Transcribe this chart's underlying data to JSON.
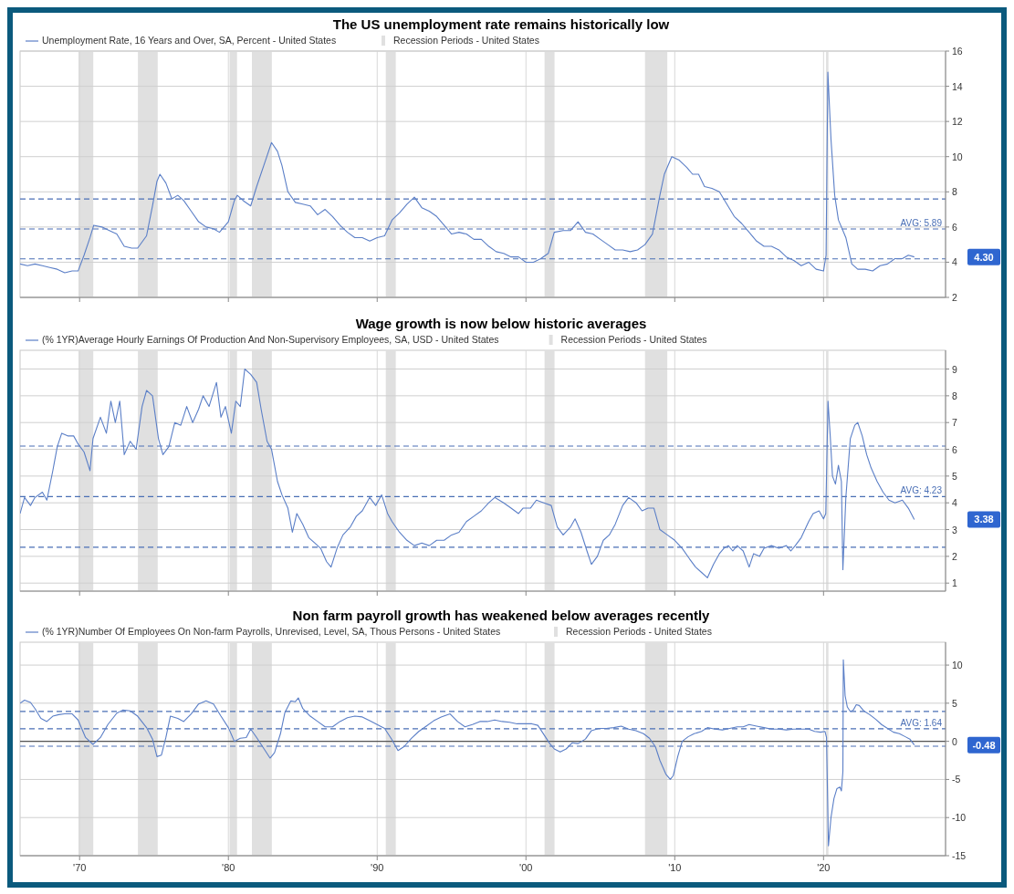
{
  "chart_data": [
    {
      "type": "line",
      "title": "The US unemployment rate remains historically low",
      "x": [
        1966.0,
        1966.5,
        1967,
        1967.5,
        1968,
        1968.5,
        1969,
        1969.5,
        1969.9,
        1970.3,
        1970.7,
        1970.95,
        1971.5,
        1972,
        1972.5,
        1973,
        1973.5,
        1973.9,
        1974.5,
        1974.9,
        1975.2,
        1975.4,
        1975.8,
        1976.2,
        1976.6,
        1977,
        1977.5,
        1978,
        1978.5,
        1979,
        1979.4,
        1980,
        1980.4,
        1980.6,
        1981,
        1981.5,
        1981.9,
        1982.5,
        1982.9,
        1983.3,
        1983.6,
        1984,
        1984.5,
        1985,
        1985.5,
        1986,
        1986.5,
        1987,
        1987.5,
        1988,
        1988.5,
        1989,
        1989.5,
        1990,
        1990.5,
        1991,
        1991.5,
        1992,
        1992.5,
        1993,
        1993.5,
        1994,
        1994.5,
        1995,
        1995.5,
        1996,
        1996.5,
        1997,
        1997.5,
        1998,
        1998.5,
        1999,
        1999.5,
        2000,
        2000.5,
        2001,
        2001.5,
        2001.9,
        2002.5,
        2003,
        2003.5,
        2004,
        2004.5,
        2005,
        2005.5,
        2006,
        2006.5,
        2007,
        2007.5,
        2008,
        2008.5,
        2009,
        2009.3,
        2009.8,
        2010.3,
        2010.8,
        2011.2,
        2011.6,
        2012,
        2012.5,
        2013,
        2013.5,
        2014,
        2014.5,
        2015,
        2015.5,
        2016,
        2016.5,
        2017,
        2017.5,
        2018,
        2018.5,
        2019,
        2019.5,
        2020.0,
        2020.17,
        2020.29,
        2020.5,
        2020.75,
        2021,
        2021.5,
        2021.9,
        2022.3,
        2022.8,
        2023.3,
        2023.8,
        2024.3,
        2024.8,
        2025.3,
        2025.7,
        2026.1
      ],
      "series": [
        {
          "name": "Unemployment Rate, 16 Years and Over, SA, Percent - United States",
          "color": "#5b7fc7",
          "values": [
            3.9,
            3.8,
            3.9,
            3.8,
            3.7,
            3.6,
            3.4,
            3.5,
            3.5,
            4.4,
            5.4,
            6.1,
            6.0,
            5.8,
            5.6,
            4.9,
            4.8,
            4.8,
            5.5,
            7.2,
            8.6,
            9.0,
            8.5,
            7.6,
            7.8,
            7.5,
            6.9,
            6.3,
            6.0,
            5.9,
            5.7,
            6.3,
            7.5,
            7.8,
            7.5,
            7.2,
            8.3,
            9.8,
            10.8,
            10.3,
            9.5,
            8.0,
            7.4,
            7.3,
            7.2,
            6.7,
            7.0,
            6.6,
            6.1,
            5.7,
            5.4,
            5.4,
            5.2,
            5.4,
            5.5,
            6.4,
            6.8,
            7.3,
            7.7,
            7.1,
            6.9,
            6.6,
            6.1,
            5.6,
            5.7,
            5.6,
            5.3,
            5.3,
            4.9,
            4.6,
            4.5,
            4.3,
            4.3,
            4.0,
            4.0,
            4.2,
            4.5,
            5.7,
            5.8,
            5.8,
            6.3,
            5.7,
            5.6,
            5.3,
            5.0,
            4.7,
            4.7,
            4.6,
            4.7,
            5.0,
            5.6,
            7.8,
            9.0,
            10.0,
            9.8,
            9.4,
            9.0,
            9.0,
            8.3,
            8.2,
            8.0,
            7.3,
            6.6,
            6.2,
            5.7,
            5.2,
            4.9,
            4.9,
            4.7,
            4.3,
            4.1,
            3.8,
            4.0,
            3.6,
            3.5,
            4.4,
            14.8,
            11.0,
            7.8,
            6.4,
            5.4,
            3.9,
            3.6,
            3.6,
            3.5,
            3.8,
            3.9,
            4.2,
            4.2,
            4.4,
            4.3
          ]
        }
      ],
      "xlim": [
        1966.0,
        2028.2
      ],
      "xticks": [
        {
          "value": 1970,
          "label": null
        },
        {
          "value": 1980,
          "label": null
        },
        {
          "value": 1990,
          "label": null
        },
        {
          "value": 2000,
          "label": null
        },
        {
          "value": 2010,
          "label": null
        },
        {
          "value": 2020,
          "label": null
        }
      ],
      "ylim": [
        2,
        16
      ],
      "yticks": [
        2,
        4,
        6,
        8,
        10,
        12,
        14,
        16
      ],
      "bands": [
        {
          "axis": "x",
          "from": 1969.92,
          "to": 1970.92,
          "label": "Recession Periods - United States",
          "color": "#e0e0e0"
        },
        {
          "axis": "x",
          "from": 1973.92,
          "to": 1975.25,
          "color": "#e0e0e0"
        },
        {
          "axis": "x",
          "from": 1980.08,
          "to": 1980.58,
          "color": "#e0e0e0"
        },
        {
          "axis": "x",
          "from": 1981.58,
          "to": 1982.92,
          "color": "#e0e0e0"
        },
        {
          "axis": "x",
          "from": 1990.58,
          "to": 1991.25,
          "color": "#e0e0e0"
        },
        {
          "axis": "x",
          "from": 2001.25,
          "to": 2001.92,
          "color": "#e0e0e0"
        },
        {
          "axis": "x",
          "from": 2008.0,
          "to": 2009.5,
          "color": "#e0e0e0"
        },
        {
          "axis": "x",
          "from": 2020.17,
          "to": 2020.33,
          "color": "#e0e0e0"
        }
      ],
      "ref_lines": [
        {
          "axis": "y",
          "value": 7.59,
          "color": "#4a6fb5",
          "line_style": "dashed"
        },
        {
          "axis": "y",
          "value": 5.89,
          "label": "AVG: 5.89",
          "color": "#4a6fb5",
          "line_style": "dashed"
        },
        {
          "axis": "y",
          "value": 4.19,
          "color": "#4a6fb5",
          "line_style": "dashed"
        }
      ],
      "annotations": [
        "4.30"
      ],
      "grid": true,
      "legend": "top left",
      "tick_labels": "y"
    },
    {
      "type": "line",
      "title": "Wage growth is now below historic averages",
      "x": [
        1966.0,
        1966.3,
        1966.7,
        1967,
        1967.5,
        1967.8,
        1968.2,
        1968.5,
        1968.8,
        1969.2,
        1969.6,
        1969.9,
        1970.3,
        1970.7,
        1970.9,
        1971.4,
        1971.8,
        1972.1,
        1972.4,
        1972.7,
        1973,
        1973.4,
        1973.8,
        1974.2,
        1974.5,
        1974.9,
        1975.3,
        1975.6,
        1976,
        1976.4,
        1976.8,
        1977.2,
        1977.6,
        1978,
        1978.3,
        1978.7,
        1979.2,
        1979.5,
        1979.8,
        1980.2,
        1980.5,
        1980.8,
        1981.1,
        1981.5,
        1981.9,
        1982.2,
        1982.6,
        1982.9,
        1983.3,
        1983.6,
        1984,
        1984.3,
        1984.6,
        1985,
        1985.4,
        1985.8,
        1986.2,
        1986.6,
        1986.9,
        1987.3,
        1987.7,
        1988.2,
        1988.6,
        1989,
        1989.5,
        1989.9,
        1990.3,
        1990.7,
        1991,
        1991.5,
        1992,
        1992.5,
        1993,
        1993.5,
        1994,
        1994.5,
        1995,
        1995.5,
        1996,
        1996.5,
        1997,
        1997.5,
        1997.9,
        1998.5,
        1999,
        1999.5,
        1999.8,
        2000.3,
        2000.7,
        2001.2,
        2001.7,
        2002.1,
        2002.5,
        2003,
        2003.3,
        2003.7,
        2004.1,
        2004.4,
        2004.8,
        2005.2,
        2005.6,
        2006,
        2006.5,
        2006.9,
        2007.4,
        2007.8,
        2008.2,
        2008.6,
        2009,
        2009.5,
        2010,
        2010.5,
        2011,
        2011.4,
        2011.8,
        2012.2,
        2012.6,
        2013,
        2013.3,
        2013.6,
        2013.9,
        2014.2,
        2014.6,
        2015.0,
        2015.3,
        2015.7,
        2016,
        2016.5,
        2017,
        2017.5,
        2017.8,
        2018.1,
        2018.5,
        2019,
        2019.3,
        2019.7,
        2020.0,
        2020.15,
        2020.3,
        2020.45,
        2020.6,
        2020.8,
        2021.0,
        2021.2,
        2021.3,
        2021.5,
        2021.8,
        2022.1,
        2022.3,
        2022.6,
        2022.9,
        2023.2,
        2023.6,
        2024,
        2024.4,
        2024.8,
        2025.3,
        2025.7,
        2026.1
      ],
      "series": [
        {
          "name": "(% 1YR)Average Hourly Earnings Of Production And Non-Supervisory Employees, SA, USD - United States",
          "color": "#5b7fc7",
          "values": [
            3.6,
            4.2,
            3.9,
            4.2,
            4.4,
            4.1,
            5.2,
            6.1,
            6.6,
            6.5,
            6.5,
            6.2,
            5.9,
            5.2,
            6.4,
            7.2,
            6.6,
            7.8,
            7.0,
            7.8,
            5.8,
            6.3,
            6.0,
            7.6,
            8.2,
            8.0,
            6.4,
            5.8,
            6.1,
            7.0,
            6.9,
            7.6,
            7.0,
            7.5,
            8.0,
            7.6,
            8.5,
            7.2,
            7.6,
            6.6,
            7.8,
            7.6,
            9.0,
            8.8,
            8.5,
            7.5,
            6.3,
            6.0,
            4.8,
            4.3,
            3.8,
            2.9,
            3.6,
            3.2,
            2.7,
            2.5,
            2.3,
            1.8,
            1.6,
            2.3,
            2.8,
            3.1,
            3.5,
            3.7,
            4.2,
            3.9,
            4.3,
            3.6,
            3.3,
            2.9,
            2.6,
            2.4,
            2.5,
            2.4,
            2.6,
            2.6,
            2.8,
            2.9,
            3.3,
            3.5,
            3.7,
            4.0,
            4.2,
            4.0,
            3.8,
            3.6,
            3.8,
            3.8,
            4.1,
            4.0,
            3.9,
            3.1,
            2.8,
            3.1,
            3.4,
            2.9,
            2.2,
            1.7,
            2.0,
            2.6,
            2.8,
            3.2,
            3.9,
            4.2,
            4.0,
            3.7,
            3.8,
            3.8,
            3.0,
            2.8,
            2.6,
            2.3,
            1.9,
            1.6,
            1.4,
            1.2,
            1.7,
            2.1,
            2.3,
            2.4,
            2.2,
            2.4,
            2.2,
            1.6,
            2.1,
            2.0,
            2.3,
            2.4,
            2.3,
            2.4,
            2.2,
            2.4,
            2.7,
            3.3,
            3.6,
            3.7,
            3.4,
            3.6,
            7.8,
            6.5,
            5.0,
            4.7,
            5.4,
            4.8,
            1.5,
            4.2,
            6.4,
            6.9,
            7.0,
            6.5,
            5.8,
            5.3,
            4.8,
            4.4,
            4.1,
            4.0,
            4.1,
            3.8,
            3.38
          ]
        }
      ],
      "xlim": [
        1966.0,
        2028.2
      ],
      "xticks": [
        {
          "value": 1970,
          "label": null
        },
        {
          "value": 1980,
          "label": null
        },
        {
          "value": 1990,
          "label": null
        },
        {
          "value": 2000,
          "label": null
        },
        {
          "value": 2010,
          "label": null
        },
        {
          "value": 2020,
          "label": null
        }
      ],
      "ylim": [
        0.7,
        9.7
      ],
      "yticks": [
        1,
        2,
        3,
        4,
        5,
        6,
        7,
        8,
        9
      ],
      "bands": [
        {
          "axis": "x",
          "from": 1969.92,
          "to": 1970.92,
          "label": "Recession Periods - United States",
          "color": "#e0e0e0"
        },
        {
          "axis": "x",
          "from": 1973.92,
          "to": 1975.25,
          "color": "#e0e0e0"
        },
        {
          "axis": "x",
          "from": 1980.08,
          "to": 1980.58,
          "color": "#e0e0e0"
        },
        {
          "axis": "x",
          "from": 1981.58,
          "to": 1982.92,
          "color": "#e0e0e0"
        },
        {
          "axis": "x",
          "from": 1990.58,
          "to": 1991.25,
          "color": "#e0e0e0"
        },
        {
          "axis": "x",
          "from": 2001.25,
          "to": 2001.92,
          "color": "#e0e0e0"
        },
        {
          "axis": "x",
          "from": 2008.0,
          "to": 2009.5,
          "color": "#e0e0e0"
        },
        {
          "axis": "x",
          "from": 2020.17,
          "to": 2020.33,
          "color": "#e0e0e0"
        }
      ],
      "ref_lines": [
        {
          "axis": "y",
          "value": 6.12,
          "color": "#4a6fb5",
          "line_style": "dashed"
        },
        {
          "axis": "y",
          "value": 4.23,
          "label": "AVG: 4.23",
          "color": "#4a6fb5",
          "line_style": "dashed"
        },
        {
          "axis": "y",
          "value": 2.34,
          "color": "#4a6fb5",
          "line_style": "dashed"
        }
      ],
      "annotations": [
        "3.38"
      ],
      "grid": true,
      "legend": "top left",
      "tick_labels": "y"
    },
    {
      "type": "line",
      "title": "Non farm payroll growth has weakened below averages recently",
      "x": [
        1966.0,
        1966.3,
        1966.7,
        1967.0,
        1967.4,
        1967.8,
        1968.2,
        1968.6,
        1969.0,
        1969.5,
        1969.9,
        1970.4,
        1970.9,
        1971.4,
        1971.9,
        1972.5,
        1972.9,
        1973.4,
        1973.9,
        1974.5,
        1974.9,
        1975.2,
        1975.5,
        1975.8,
        1976.1,
        1976.6,
        1977,
        1977.5,
        1978,
        1978.5,
        1979,
        1979.5,
        1980.0,
        1980.4,
        1980.8,
        1981.2,
        1981.5,
        1981.9,
        1982.4,
        1982.8,
        1983.1,
        1983.5,
        1983.8,
        1984.2,
        1984.5,
        1984.7,
        1985.0,
        1985.5,
        1986,
        1986.5,
        1987.0,
        1987.5,
        1988,
        1988.5,
        1989,
        1989.5,
        1990,
        1990.5,
        1991,
        1991.4,
        1991.8,
        1992.3,
        1992.8,
        1993.3,
        1993.8,
        1994.3,
        1994.9,
        1995.4,
        1995.9,
        1996.4,
        1996.9,
        1997.4,
        1997.9,
        1998.4,
        1998.9,
        1999.4,
        1999.9,
        2000.4,
        2000.8,
        2001.2,
        2001.6,
        2001.9,
        2002.3,
        2002.7,
        2003.1,
        2003.5,
        2004.0,
        2004.4,
        2004.9,
        2005.4,
        2005.9,
        2006.4,
        2006.9,
        2007.4,
        2007.9,
        2008.3,
        2008.7,
        2009.0,
        2009.4,
        2009.7,
        2009.9,
        2010.2,
        2010.5,
        2010.9,
        2011.3,
        2011.8,
        2012.2,
        2012.7,
        2013.2,
        2013.7,
        2014.2,
        2014.6,
        2015.0,
        2015.5,
        2016,
        2016.5,
        2017,
        2017.5,
        2018,
        2018.5,
        2019,
        2019.4,
        2019.8,
        2020.1,
        2020.2,
        2020.33,
        2020.5,
        2020.7,
        2020.9,
        2021.1,
        2021.2,
        2021.3,
        2021.33,
        2021.45,
        2021.6,
        2021.8,
        2022.0,
        2022.2,
        2022.4,
        2022.7,
        2023.1,
        2023.5,
        2023.9,
        2024.3,
        2024.7,
        2025.1,
        2025.5,
        2025.8,
        2026.1
      ],
      "series": [
        {
          "name": "(% 1YR)Number Of Employees On Non-farm Payrolls, Unrevised, Level, SA, Thous Persons - United States",
          "color": "#5b7fc7",
          "values": [
            5.0,
            5.4,
            5.1,
            4.3,
            3.0,
            2.6,
            3.3,
            3.5,
            3.6,
            3.6,
            2.8,
            0.5,
            -0.4,
            0.5,
            2.2,
            3.7,
            4.1,
            4.0,
            3.3,
            1.8,
            0.3,
            -2.0,
            -1.8,
            0.5,
            3.3,
            3.0,
            2.6,
            3.6,
            4.9,
            5.3,
            4.9,
            3.3,
            1.8,
            0.0,
            0.4,
            0.5,
            1.6,
            0.5,
            -1.0,
            -2.2,
            -1.5,
            1.0,
            3.8,
            5.3,
            5.2,
            5.7,
            4.3,
            3.3,
            2.6,
            1.9,
            1.9,
            2.6,
            3.1,
            3.3,
            3.2,
            2.7,
            2.2,
            1.7,
            0.2,
            -1.2,
            -0.7,
            0.4,
            1.3,
            2.0,
            2.7,
            3.2,
            3.6,
            2.6,
            1.9,
            2.2,
            2.6,
            2.6,
            2.8,
            2.6,
            2.5,
            2.3,
            2.3,
            2.3,
            2.1,
            0.9,
            -0.3,
            -1.0,
            -1.4,
            -1.0,
            -0.2,
            -0.3,
            0.3,
            1.4,
            1.7,
            1.7,
            1.8,
            2.0,
            1.6,
            1.4,
            1.0,
            0.4,
            -0.7,
            -2.5,
            -4.3,
            -5.0,
            -4.5,
            -2.0,
            0.0,
            0.6,
            1.0,
            1.3,
            1.8,
            1.6,
            1.5,
            1.7,
            1.9,
            1.9,
            2.2,
            2.0,
            1.8,
            1.6,
            1.6,
            1.5,
            1.6,
            1.6,
            1.6,
            1.3,
            1.2,
            1.3,
            0.5,
            -13.7,
            -10.0,
            -7.5,
            -6.2,
            -6.0,
            -6.5,
            -4.0,
            10.7,
            6.0,
            4.5,
            3.9,
            4.1,
            4.8,
            4.7,
            4.0,
            3.5,
            2.9,
            2.2,
            1.7,
            1.2,
            1.0,
            0.6,
            0.3,
            -0.48
          ]
        }
      ],
      "xlim": [
        1966.0,
        2028.2
      ],
      "xticks": [
        {
          "value": 1970,
          "label": "'70"
        },
        {
          "value": 1980,
          "label": "'80"
        },
        {
          "value": 1990,
          "label": "'90"
        },
        {
          "value": 2000,
          "label": "'00"
        },
        {
          "value": 2010,
          "label": "'10"
        },
        {
          "value": 2020,
          "label": "'20"
        }
      ],
      "ylim": [
        -15,
        13
      ],
      "yticks": [
        -15,
        -10,
        -5,
        0,
        5,
        10
      ],
      "bands": [
        {
          "axis": "x",
          "from": 1969.92,
          "to": 1970.92,
          "label": "Recession Periods - United States",
          "color": "#e0e0e0"
        },
        {
          "axis": "x",
          "from": 1973.92,
          "to": 1975.25,
          "color": "#e0e0e0"
        },
        {
          "axis": "x",
          "from": 1980.08,
          "to": 1980.58,
          "color": "#e0e0e0"
        },
        {
          "axis": "x",
          "from": 1981.58,
          "to": 1982.92,
          "color": "#e0e0e0"
        },
        {
          "axis": "x",
          "from": 1990.58,
          "to": 1991.25,
          "color": "#e0e0e0"
        },
        {
          "axis": "x",
          "from": 2001.25,
          "to": 2001.92,
          "color": "#e0e0e0"
        },
        {
          "axis": "x",
          "from": 2008.0,
          "to": 2009.5,
          "color": "#e0e0e0"
        },
        {
          "axis": "x",
          "from": 2020.17,
          "to": 2020.33,
          "color": "#e0e0e0"
        }
      ],
      "ref_lines": [
        {
          "axis": "y",
          "value": 0,
          "color": "#555555",
          "line_style": "solid"
        },
        {
          "axis": "y",
          "value": 3.92,
          "color": "#4a6fb5",
          "line_style": "dashed"
        },
        {
          "axis": "y",
          "value": 1.64,
          "label": "AVG: 1.64",
          "color": "#4a6fb5",
          "line_style": "dashed"
        },
        {
          "axis": "y",
          "value": -0.64,
          "color": "#4a6fb5",
          "line_style": "dashed"
        }
      ],
      "annotations": [
        "-0.48"
      ],
      "grid": true,
      "legend": "top left"
    }
  ]
}
